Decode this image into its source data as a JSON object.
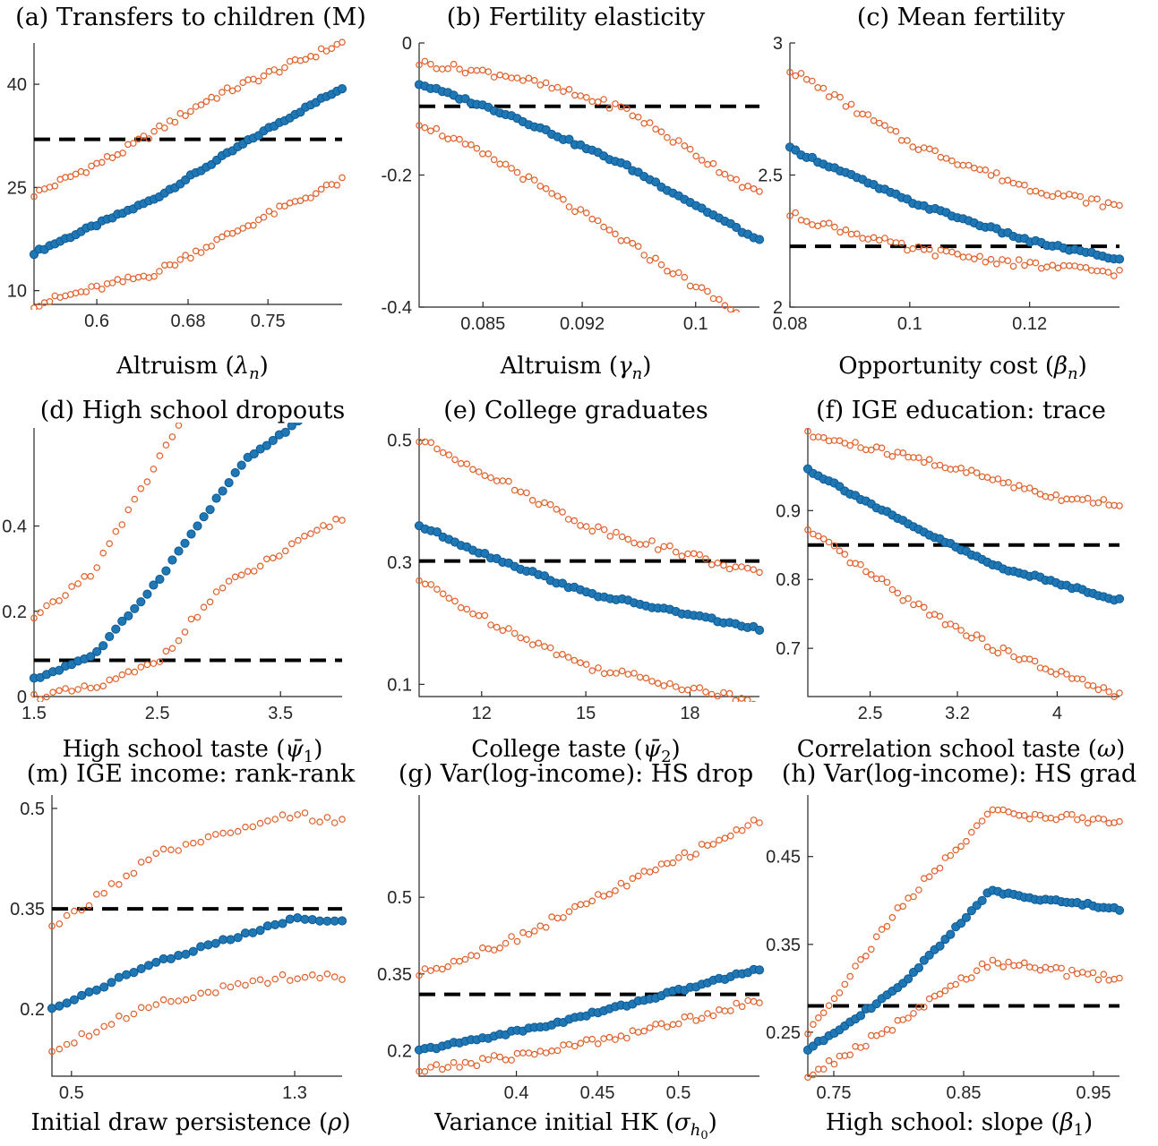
{
  "chart_data": [
    {
      "type": "scatter",
      "title": "(a) Transfers to children (M)",
      "xlabel": "Altruism (λn)",
      "xlim": [
        0.545,
        0.815
      ],
      "ylim": [
        8,
        46
      ],
      "xticks": [
        0.6,
        0.68,
        0.75
      ],
      "yticks": [
        10,
        25,
        40
      ],
      "tick_labels_x": [
        "0.6",
        "0.68",
        "0.75"
      ],
      "tick_labels_y": [
        "10",
        "25",
        "40"
      ],
      "reference_line": 32,
      "n_points": 60,
      "series": [
        {
          "role": "mean",
          "marker": "filled-circle",
          "color": "#1f77b4",
          "shape": [
            [
              0.545,
              15.5
            ],
            [
              0.65,
              23.3
            ],
            [
              0.75,
              33.5
            ],
            [
              0.815,
              39.5
            ]
          ]
        },
        {
          "role": "upper",
          "marker": "open-circle",
          "color": "#e0602a",
          "shape": [
            [
              0.545,
              24
            ],
            [
              0.62,
              30
            ],
            [
              0.7,
              38
            ],
            [
              0.815,
              46
            ]
          ]
        },
        {
          "role": "lower",
          "marker": "open-circle",
          "color": "#e0602a",
          "shape": [
            [
              0.545,
              8
            ],
            [
              0.65,
              12.5
            ],
            [
              0.75,
              21
            ],
            [
              0.815,
              26
            ]
          ]
        }
      ]
    },
    {
      "type": "scatter",
      "title": "(b) Fertility elasticity",
      "xlabel": "Altruism (γn)",
      "xlim": [
        0.0805,
        0.1045
      ],
      "ylim": [
        -0.4,
        0
      ],
      "xticks": [
        0.085,
        0.092,
        0.1
      ],
      "yticks": [
        -0.4,
        -0.2,
        0
      ],
      "tick_labels_x": [
        "0.085",
        "0.092",
        "0.1"
      ],
      "tick_labels_y": [
        "-0.4",
        "-0.2",
        "0"
      ],
      "reference_line": -0.096,
      "n_points": 60,
      "series": [
        {
          "role": "mean",
          "marker": "filled-circle",
          "color": "#1f77b4",
          "shape": [
            [
              0.0805,
              -0.062
            ],
            [
              0.087,
              -0.11
            ],
            [
              0.095,
              -0.185
            ],
            [
              0.1045,
              -0.3
            ]
          ]
        },
        {
          "role": "upper",
          "marker": "open-circle",
          "color": "#e0602a",
          "shape": [
            [
              0.0805,
              -0.03
            ],
            [
              0.087,
              -0.05
            ],
            [
              0.095,
              -0.1
            ],
            [
              0.1045,
              -0.23
            ]
          ]
        },
        {
          "role": "lower",
          "marker": "open-circle",
          "color": "#e0602a",
          "shape": [
            [
              0.0805,
              -0.12
            ],
            [
              0.087,
              -0.19
            ],
            [
              0.095,
              -0.3
            ],
            [
              0.1045,
              -0.43
            ]
          ]
        }
      ]
    },
    {
      "type": "scatter",
      "title": "(c) Mean fertility",
      "xlabel": "Opportunity cost (βn)",
      "xlim": [
        0.08,
        0.135
      ],
      "ylim": [
        2,
        3
      ],
      "xticks": [
        0.08,
        0.1,
        0.12
      ],
      "yticks": [
        2,
        2.5,
        3
      ],
      "tick_labels_x": [
        "0.08",
        "0.1",
        "0.12"
      ],
      "tick_labels_y": [
        "2",
        "2.5",
        "3"
      ],
      "reference_line": 2.23,
      "n_points": 60,
      "series": [
        {
          "role": "mean",
          "marker": "filled-circle",
          "color": "#1f77b4",
          "shape": [
            [
              0.08,
              2.6
            ],
            [
              0.1,
              2.4
            ],
            [
              0.12,
              2.25
            ],
            [
              0.135,
              2.18
            ]
          ]
        },
        {
          "role": "upper",
          "marker": "open-circle",
          "color": "#e0602a",
          "shape": [
            [
              0.08,
              2.9
            ],
            [
              0.1,
              2.62
            ],
            [
              0.12,
              2.45
            ],
            [
              0.135,
              2.38
            ]
          ]
        },
        {
          "role": "lower",
          "marker": "open-circle",
          "color": "#e0602a",
          "shape": [
            [
              0.08,
              2.35
            ],
            [
              0.1,
              2.22
            ],
            [
              0.12,
              2.16
            ],
            [
              0.135,
              2.13
            ]
          ]
        }
      ]
    },
    {
      "type": "scatter",
      "title": "(d) High school dropouts",
      "xlabel": "High school taste (ψ̄1)",
      "xlim": [
        1.5,
        4.0
      ],
      "ylim": [
        0,
        0.63
      ],
      "xticks": [
        1.5,
        2.5,
        3.5
      ],
      "yticks": [
        0,
        0.2,
        0.4
      ],
      "tick_labels_x": [
        "1.5",
        "2.5",
        "3.5"
      ],
      "tick_labels_y": [
        "0",
        "0.2",
        "0.4"
      ],
      "reference_line": 0.085,
      "n_points": 50,
      "series": [
        {
          "role": "mean",
          "marker": "filled-circle",
          "color": "#1f77b4",
          "shape": [
            [
              1.5,
              0.04
            ],
            [
              2.0,
              0.1
            ],
            [
              2.5,
              0.27
            ],
            [
              3.2,
              0.55
            ],
            [
              4.0,
              0.72
            ]
          ]
        },
        {
          "role": "upper",
          "marker": "open-circle",
          "color": "#e0602a",
          "shape": [
            [
              1.5,
              0.18
            ],
            [
              2.0,
              0.3
            ],
            [
              2.5,
              0.55
            ],
            [
              2.95,
              0.78
            ]
          ]
        },
        {
          "role": "lower",
          "marker": "open-circle",
          "color": "#e0602a",
          "shape": [
            [
              1.5,
              0.0
            ],
            [
              2.0,
              0.02
            ],
            [
              2.5,
              0.08
            ],
            [
              3.0,
              0.25
            ],
            [
              4.0,
              0.42
            ]
          ]
        }
      ]
    },
    {
      "type": "scatter",
      "title": "(e) College graduates",
      "xlabel": "College taste (ψ̄2)",
      "xlim": [
        10.2,
        20.0
      ],
      "ylim": [
        0.08,
        0.52
      ],
      "xticks": [
        12,
        15,
        18
      ],
      "yticks": [
        0.1,
        0.3,
        0.5
      ],
      "tick_labels_x": [
        "12",
        "15",
        "18"
      ],
      "tick_labels_y": [
        "0.1",
        "0.3",
        "0.5"
      ],
      "reference_line": 0.302,
      "n_points": 58,
      "series": [
        {
          "role": "mean",
          "marker": "filled-circle",
          "color": "#1f77b4",
          "shape": [
            [
              10.2,
              0.36
            ],
            [
              12,
              0.315
            ],
            [
              15,
              0.25
            ],
            [
              20,
              0.19
            ]
          ]
        },
        {
          "role": "upper",
          "marker": "open-circle",
          "color": "#e0602a",
          "shape": [
            [
              10.2,
              0.5
            ],
            [
              12,
              0.45
            ],
            [
              15,
              0.36
            ],
            [
              20,
              0.28
            ]
          ]
        },
        {
          "role": "lower",
          "marker": "open-circle",
          "color": "#e0602a",
          "shape": [
            [
              10.2,
              0.27
            ],
            [
              12,
              0.21
            ],
            [
              15,
              0.13
            ],
            [
              20,
              0.07
            ]
          ]
        }
      ]
    },
    {
      "type": "scatter",
      "title": "(f) IGE education: trace",
      "xlabel": "Correlation school taste (ω)",
      "xlim": [
        2.0,
        4.5
      ],
      "ylim": [
        0.63,
        1.02
      ],
      "xticks": [
        2.5,
        3.2,
        4
      ],
      "yticks": [
        0.7,
        0.8,
        0.9
      ],
      "tick_labels_x": [
        "2.5",
        "3.2",
        "4"
      ],
      "tick_labels_y": [
        "0.7",
        "0.8",
        "0.9"
      ],
      "reference_line": 0.85,
      "n_points": 60,
      "series": [
        {
          "role": "mean",
          "marker": "filled-circle",
          "color": "#1f77b4",
          "shape": [
            [
              2.0,
              0.96
            ],
            [
              2.8,
              0.88
            ],
            [
              3.5,
              0.82
            ],
            [
              4.5,
              0.77
            ]
          ]
        },
        {
          "role": "upper",
          "marker": "open-circle",
          "color": "#e0602a",
          "shape": [
            [
              2.0,
              1.01
            ],
            [
              3.0,
              0.97
            ],
            [
              4.0,
              0.92
            ],
            [
              4.5,
              0.91
            ]
          ]
        },
        {
          "role": "lower",
          "marker": "open-circle",
          "color": "#e0602a",
          "shape": [
            [
              2.0,
              0.87
            ],
            [
              2.8,
              0.77
            ],
            [
              3.5,
              0.7
            ],
            [
              4.5,
              0.63
            ]
          ]
        }
      ]
    },
    {
      "type": "scatter",
      "title": "(m) IGE income: rank-rank",
      "xlabel": "Initial draw persistence (ρ)",
      "xlim": [
        0.43,
        1.47
      ],
      "ylim": [
        0.1,
        0.52
      ],
      "xticks": [
        0.5,
        1.3
      ],
      "yticks": [
        0.2,
        0.35,
        0.5
      ],
      "tick_labels_x": [
        "0.5",
        "1.3"
      ],
      "tick_labels_y": [
        "0.2",
        "0.35",
        "0.5"
      ],
      "reference_line": 0.35,
      "n_points": 40,
      "series": [
        {
          "role": "mean",
          "marker": "filled-circle",
          "color": "#1f77b4",
          "shape": [
            [
              0.43,
              0.2
            ],
            [
              0.8,
              0.27
            ],
            [
              1.3,
              0.335
            ],
            [
              1.47,
              0.33
            ]
          ]
        },
        {
          "role": "upper",
          "marker": "open-circle",
          "color": "#e0602a",
          "shape": [
            [
              0.43,
              0.32
            ],
            [
              0.8,
              0.43
            ],
            [
              1.3,
              0.49
            ],
            [
              1.47,
              0.48
            ]
          ]
        },
        {
          "role": "lower",
          "marker": "open-circle",
          "color": "#e0602a",
          "shape": [
            [
              0.43,
              0.14
            ],
            [
              0.8,
              0.21
            ],
            [
              1.3,
              0.25
            ],
            [
              1.47,
              0.25
            ]
          ]
        }
      ]
    },
    {
      "type": "scatter",
      "title": "(g) Var(log-income): HS drop",
      "xlabel": "Variance initial HK (σh0)",
      "xlim": [
        0.34,
        0.55
      ],
      "ylim": [
        0.15,
        0.7
      ],
      "xticks": [
        0.4,
        0.45,
        0.5
      ],
      "yticks": [
        0.2,
        0.35,
        0.5
      ],
      "tick_labels_x": [
        "0.4",
        "0.45",
        "0.5"
      ],
      "tick_labels_y": [
        "0.2",
        "0.35",
        "0.5"
      ],
      "reference_line": 0.31,
      "n_points": 60,
      "series": [
        {
          "role": "mean",
          "marker": "filled-circle",
          "color": "#1f77b4",
          "shape": [
            [
              0.34,
              0.2
            ],
            [
              0.42,
              0.25
            ],
            [
              0.48,
              0.3
            ],
            [
              0.55,
              0.36
            ]
          ]
        },
        {
          "role": "upper",
          "marker": "open-circle",
          "color": "#e0602a",
          "shape": [
            [
              0.34,
              0.35
            ],
            [
              0.4,
              0.42
            ],
            [
              0.47,
              0.53
            ],
            [
              0.55,
              0.65
            ]
          ]
        },
        {
          "role": "lower",
          "marker": "open-circle",
          "color": "#e0602a",
          "shape": [
            [
              0.34,
              0.16
            ],
            [
              0.42,
              0.2
            ],
            [
              0.48,
              0.24
            ],
            [
              0.55,
              0.3
            ]
          ]
        }
      ]
    },
    {
      "type": "scatter",
      "title": "(h) Var(log-income): HS grad",
      "xlabel": "High school: slope (β1)",
      "xlim": [
        0.73,
        0.97
      ],
      "ylim": [
        0.2,
        0.52
      ],
      "xticks": [
        0.75,
        0.85,
        0.95
      ],
      "yticks": [
        0.25,
        0.35,
        0.45
      ],
      "tick_labels_x": [
        "0.75",
        "0.85",
        "0.95"
      ],
      "tick_labels_y": [
        "0.25",
        "0.35",
        "0.45"
      ],
      "reference_line": 0.28,
      "n_points": 60,
      "series": [
        {
          "role": "mean",
          "marker": "filled-circle",
          "color": "#1f77b4",
          "shape": [
            [
              0.73,
              0.23
            ],
            [
              0.8,
              0.3
            ],
            [
              0.87,
              0.41
            ],
            [
              0.97,
              0.39
            ]
          ]
        },
        {
          "role": "upper",
          "marker": "open-circle",
          "color": "#e0602a",
          "shape": [
            [
              0.73,
              0.25
            ],
            [
              0.8,
              0.39
            ],
            [
              0.87,
              0.5
            ],
            [
              0.97,
              0.49
            ]
          ]
        },
        {
          "role": "lower",
          "marker": "open-circle",
          "color": "#e0602a",
          "shape": [
            [
              0.73,
              0.2
            ],
            [
              0.8,
              0.26
            ],
            [
              0.87,
              0.33
            ],
            [
              0.97,
              0.31
            ]
          ]
        }
      ]
    }
  ]
}
